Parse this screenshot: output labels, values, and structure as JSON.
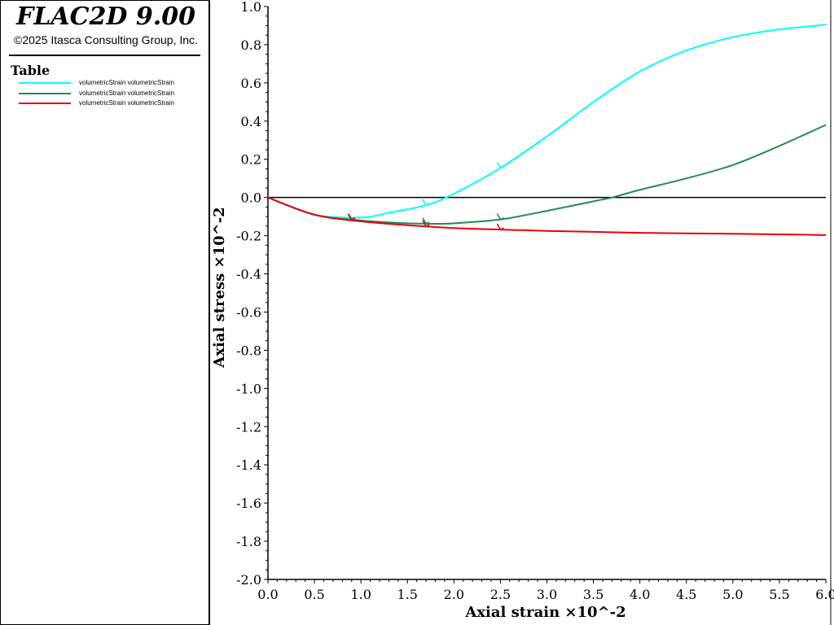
{
  "app": {
    "title": "FLAC2D 9.00",
    "copyright": "©2025 Itasca Consulting Group, Inc."
  },
  "legend": {
    "heading": "Table",
    "entries": [
      {
        "label": "volumetricStrain volumetricStrain",
        "color": "#00ffff"
      },
      {
        "label": "volumetricStrain volumetricStrain",
        "color": "#228b56"
      },
      {
        "label": "volumetricStrain volumetricStrain",
        "color": "#e8000b"
      }
    ]
  },
  "chart_data": {
    "type": "line",
    "xlabel": "Axial strain ×10^-2",
    "ylabel": "Axial stress ×10^-2",
    "xlim": [
      0.0,
      6.0
    ],
    "ylim": [
      -2.0,
      1.0
    ],
    "xticks": [
      "0.0",
      "0.5",
      "1.0",
      "1.5",
      "2.0",
      "2.5",
      "3.0",
      "3.5",
      "4.0",
      "4.5",
      "5.0",
      "5.5",
      "6.0"
    ],
    "yticks": [
      "1.0",
      "0.8",
      "0.6",
      "0.4",
      "0.2",
      "0.0",
      "-0.2",
      "-0.4",
      "-0.6",
      "-0.8",
      "-1.0",
      "-1.2",
      "-1.4",
      "-1.6",
      "-1.8",
      "-2.0"
    ],
    "zero_line": true,
    "series": [
      {
        "color": "#00ffff",
        "x": [
          0.0,
          0.5,
          1.0,
          1.3,
          1.7,
          2.0,
          2.5,
          3.0,
          3.5,
          4.0,
          4.5,
          5.0,
          5.5,
          6.0
        ],
        "y": [
          0.0,
          -0.09,
          -0.105,
          -0.08,
          -0.04,
          0.02,
          0.155,
          0.32,
          0.5,
          0.66,
          0.77,
          0.84,
          0.88,
          0.905
        ]
      },
      {
        "color": "#228b56",
        "x": [
          0.0,
          0.5,
          1.0,
          1.5,
          1.8,
          2.0,
          2.5,
          3.0,
          3.5,
          3.7,
          4.0,
          4.5,
          5.0,
          5.5,
          6.0
        ],
        "y": [
          0.0,
          -0.09,
          -0.12,
          -0.135,
          -0.138,
          -0.135,
          -0.115,
          -0.07,
          -0.02,
          0.0,
          0.04,
          0.1,
          0.17,
          0.27,
          0.38
        ]
      },
      {
        "color": "#e8000b",
        "x": [
          0.0,
          0.5,
          1.0,
          1.5,
          2.0,
          2.5,
          3.0,
          3.5,
          4.0,
          4.5,
          5.0,
          5.5,
          6.0
        ],
        "y": [
          0.0,
          -0.09,
          -0.125,
          -0.145,
          -0.16,
          -0.168,
          -0.175,
          -0.18,
          -0.185,
          -0.188,
          -0.19,
          -0.193,
          -0.197
        ]
      }
    ],
    "markers": [
      {
        "series": 0,
        "x": 1.7
      },
      {
        "series": 0,
        "x": 2.5
      },
      {
        "series": 1,
        "x": 0.9
      },
      {
        "series": 1,
        "x": 1.7
      },
      {
        "series": 1,
        "x": 2.5
      },
      {
        "series": 2,
        "x": 0.9
      },
      {
        "series": 2,
        "x": 1.7
      },
      {
        "series": 2,
        "x": 2.5
      }
    ]
  }
}
